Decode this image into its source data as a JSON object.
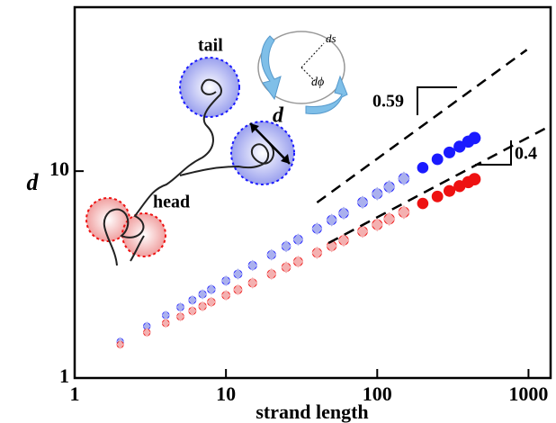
{
  "chart_data": {
    "type": "scatter",
    "xlabel": "strand length",
    "ylabel": "d",
    "log_x": true,
    "log_y": true,
    "xlim": [
      1,
      1400
    ],
    "ylim": [
      1,
      62
    ],
    "xticks": [
      1,
      10,
      100,
      1000
    ],
    "yticks": [
      1,
      10
    ],
    "series": [
      {
        "color": "#1a1aff",
        "marker": "circle",
        "x": [
          2,
          3,
          4,
          5,
          6,
          7,
          8,
          10,
          12,
          15,
          20,
          25,
          30,
          40,
          50,
          60,
          80,
          100,
          120,
          150,
          200,
          250,
          300,
          350,
          400,
          440
        ],
        "values": [
          1.5,
          1.78,
          2.01,
          2.2,
          2.38,
          2.54,
          2.68,
          2.95,
          3.18,
          3.5,
          3.94,
          4.33,
          4.67,
          5.27,
          5.8,
          6.26,
          7.07,
          7.77,
          8.39,
          9.21,
          10.39,
          11.41,
          12.31,
          13.13,
          13.89,
          14.46
        ]
      },
      {
        "color": "#aab0ee",
        "marker": "diamond",
        "x": [
          2,
          3,
          4,
          5,
          6,
          7,
          8,
          10,
          12,
          15,
          20,
          25,
          30,
          40,
          50,
          60,
          80,
          100,
          120,
          150
        ],
        "values": [
          1.5,
          1.78,
          2.01,
          2.2,
          2.38,
          2.54,
          2.68,
          2.95,
          3.18,
          3.5,
          3.94,
          4.33,
          4.67,
          5.27,
          5.8,
          6.26,
          7.07,
          7.77,
          8.39,
          9.21
        ]
      },
      {
        "color": "#ee1111",
        "marker": "circle",
        "x": [
          2,
          3,
          4,
          5,
          6,
          7,
          8,
          10,
          12,
          15,
          20,
          25,
          30,
          40,
          50,
          60,
          80,
          100,
          120,
          150,
          200,
          250,
          300,
          350,
          400,
          440
        ],
        "values": [
          1.45,
          1.66,
          1.84,
          1.98,
          2.11,
          2.22,
          2.33,
          2.51,
          2.67,
          2.88,
          3.18,
          3.43,
          3.65,
          4.03,
          4.35,
          4.63,
          5.11,
          5.51,
          5.87,
          6.33,
          6.98,
          7.54,
          8.02,
          8.46,
          8.85,
          9.14
        ]
      },
      {
        "color": "#f4b0b0",
        "marker": "diamond",
        "x": [
          2,
          3,
          4,
          5,
          6,
          7,
          8,
          10,
          12,
          15,
          20,
          25,
          30,
          40,
          50,
          60,
          80,
          100,
          120,
          150
        ],
        "values": [
          1.45,
          1.66,
          1.84,
          1.98,
          2.11,
          2.22,
          2.33,
          2.51,
          2.67,
          2.88,
          3.18,
          3.43,
          3.65,
          4.03,
          4.35,
          4.63,
          5.11,
          5.51,
          5.87,
          6.33
        ]
      }
    ],
    "guides": [
      {
        "x": [
          40,
          975
        ],
        "y": [
          7.05,
          38.6
        ]
      },
      {
        "x": [
          47.6,
          1380
        ],
        "y": [
          4.49,
          16.5
        ]
      }
    ],
    "annotations": [
      "0.59",
      "0.4",
      "tail",
      "head",
      "d",
      "ds",
      "dϕ"
    ]
  }
}
